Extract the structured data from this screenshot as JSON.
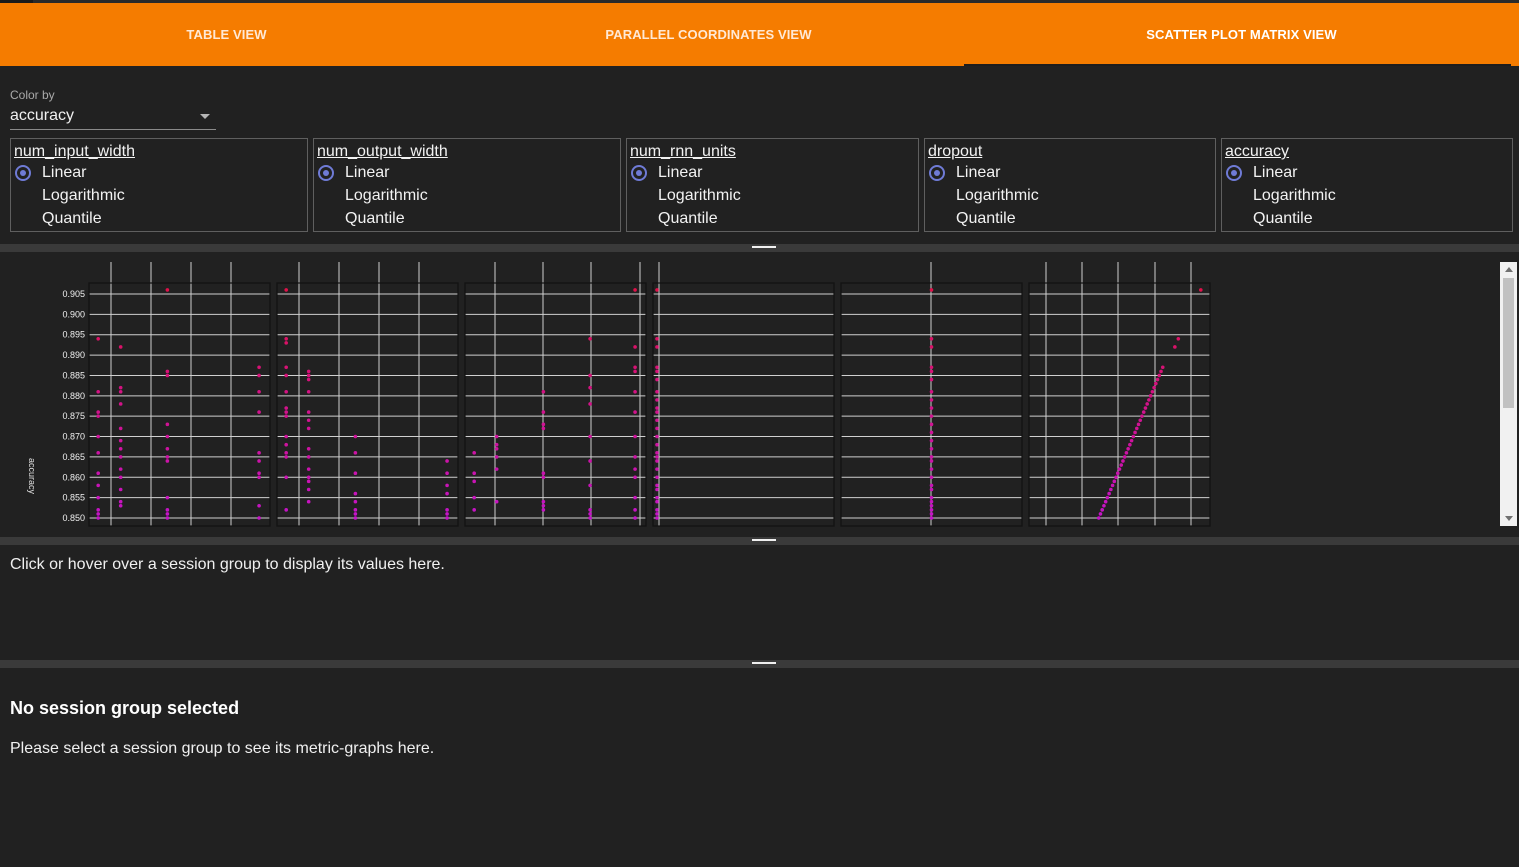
{
  "tabs": [
    {
      "label": "TABLE VIEW",
      "active": false
    },
    {
      "label": "PARALLEL COORDINATES VIEW",
      "active": false
    },
    {
      "label": "SCATTER PLOT MATRIX VIEW",
      "active": true
    }
  ],
  "color_by": {
    "label": "Color by",
    "value": "accuracy"
  },
  "scales": [
    {
      "name": "num_input_width",
      "selected": "Linear",
      "options": [
        "Linear",
        "Logarithmic",
        "Quantile"
      ]
    },
    {
      "name": "num_output_width",
      "selected": "Linear",
      "options": [
        "Linear",
        "Logarithmic",
        "Quantile"
      ]
    },
    {
      "name": "num_rnn_units",
      "selected": "Linear",
      "options": [
        "Linear",
        "Logarithmic",
        "Quantile"
      ]
    },
    {
      "name": "dropout",
      "selected": "Linear",
      "options": [
        "Linear",
        "Logarithmic",
        "Quantile"
      ]
    },
    {
      "name": "accuracy",
      "selected": "Linear",
      "options": [
        "Linear",
        "Logarithmic",
        "Quantile"
      ]
    }
  ],
  "colors": {
    "accent": "#f57c00",
    "radio": "#6f7bd6",
    "point_high": "#e0114a",
    "point_low": "#c414c8"
  },
  "chart_data": {
    "type": "scatter",
    "ylabel": "accuracy",
    "ylim": [
      0.849,
      0.907
    ],
    "yticks": [
      "0.905",
      "0.900",
      "0.895",
      "0.890",
      "0.885",
      "0.880",
      "0.875",
      "0.870",
      "0.865",
      "0.860",
      "0.855",
      "0.850"
    ],
    "panels": [
      {
        "x_column": "num_input_width",
        "points": [
          {
            "x": 0.03,
            "y": 0.894
          },
          {
            "x": 0.03,
            "y": 0.881
          },
          {
            "x": 0.03,
            "y": 0.876
          },
          {
            "x": 0.03,
            "y": 0.875
          },
          {
            "x": 0.03,
            "y": 0.87
          },
          {
            "x": 0.03,
            "y": 0.866
          },
          {
            "x": 0.03,
            "y": 0.861
          },
          {
            "x": 0.03,
            "y": 0.858
          },
          {
            "x": 0.03,
            "y": 0.855
          },
          {
            "x": 0.03,
            "y": 0.852
          },
          {
            "x": 0.03,
            "y": 0.851
          },
          {
            "x": 0.03,
            "y": 0.85
          },
          {
            "x": 0.16,
            "y": 0.892
          },
          {
            "x": 0.16,
            "y": 0.882
          },
          {
            "x": 0.16,
            "y": 0.881
          },
          {
            "x": 0.16,
            "y": 0.878
          },
          {
            "x": 0.16,
            "y": 0.872
          },
          {
            "x": 0.16,
            "y": 0.869
          },
          {
            "x": 0.16,
            "y": 0.867
          },
          {
            "x": 0.16,
            "y": 0.865
          },
          {
            "x": 0.16,
            "y": 0.862
          },
          {
            "x": 0.16,
            "y": 0.86
          },
          {
            "x": 0.16,
            "y": 0.857
          },
          {
            "x": 0.16,
            "y": 0.854
          },
          {
            "x": 0.16,
            "y": 0.853
          },
          {
            "x": 0.43,
            "y": 0.906
          },
          {
            "x": 0.43,
            "y": 0.886
          },
          {
            "x": 0.43,
            "y": 0.885
          },
          {
            "x": 0.43,
            "y": 0.873
          },
          {
            "x": 0.43,
            "y": 0.87
          },
          {
            "x": 0.43,
            "y": 0.867
          },
          {
            "x": 0.43,
            "y": 0.865
          },
          {
            "x": 0.43,
            "y": 0.864
          },
          {
            "x": 0.43,
            "y": 0.855
          },
          {
            "x": 0.43,
            "y": 0.852
          },
          {
            "x": 0.43,
            "y": 0.851
          },
          {
            "x": 0.43,
            "y": 0.85
          },
          {
            "x": 0.96,
            "y": 0.887
          },
          {
            "x": 0.96,
            "y": 0.885
          },
          {
            "x": 0.96,
            "y": 0.881
          },
          {
            "x": 0.96,
            "y": 0.876
          },
          {
            "x": 0.96,
            "y": 0.866
          },
          {
            "x": 0.96,
            "y": 0.864
          },
          {
            "x": 0.96,
            "y": 0.861
          },
          {
            "x": 0.96,
            "y": 0.86
          },
          {
            "x": 0.96,
            "y": 0.853
          },
          {
            "x": 0.96,
            "y": 0.85
          }
        ]
      },
      {
        "x_column": "num_output_width",
        "points": [
          {
            "x": 0.03,
            "y": 0.906
          },
          {
            "x": 0.03,
            "y": 0.894
          },
          {
            "x": 0.03,
            "y": 0.893
          },
          {
            "x": 0.03,
            "y": 0.887
          },
          {
            "x": 0.03,
            "y": 0.885
          },
          {
            "x": 0.03,
            "y": 0.881
          },
          {
            "x": 0.03,
            "y": 0.877
          },
          {
            "x": 0.03,
            "y": 0.876
          },
          {
            "x": 0.03,
            "y": 0.875
          },
          {
            "x": 0.03,
            "y": 0.87
          },
          {
            "x": 0.03,
            "y": 0.868
          },
          {
            "x": 0.03,
            "y": 0.866
          },
          {
            "x": 0.03,
            "y": 0.865
          },
          {
            "x": 0.03,
            "y": 0.86
          },
          {
            "x": 0.03,
            "y": 0.852
          },
          {
            "x": 0.16,
            "y": 0.886
          },
          {
            "x": 0.16,
            "y": 0.885
          },
          {
            "x": 0.16,
            "y": 0.884
          },
          {
            "x": 0.16,
            "y": 0.881
          },
          {
            "x": 0.16,
            "y": 0.876
          },
          {
            "x": 0.16,
            "y": 0.874
          },
          {
            "x": 0.16,
            "y": 0.872
          },
          {
            "x": 0.16,
            "y": 0.867
          },
          {
            "x": 0.16,
            "y": 0.865
          },
          {
            "x": 0.16,
            "y": 0.862
          },
          {
            "x": 0.16,
            "y": 0.86
          },
          {
            "x": 0.16,
            "y": 0.859
          },
          {
            "x": 0.16,
            "y": 0.857
          },
          {
            "x": 0.16,
            "y": 0.854
          },
          {
            "x": 0.43,
            "y": 0.87
          },
          {
            "x": 0.43,
            "y": 0.866
          },
          {
            "x": 0.43,
            "y": 0.861
          },
          {
            "x": 0.43,
            "y": 0.856
          },
          {
            "x": 0.43,
            "y": 0.854
          },
          {
            "x": 0.43,
            "y": 0.852
          },
          {
            "x": 0.43,
            "y": 0.851
          },
          {
            "x": 0.43,
            "y": 0.85
          },
          {
            "x": 0.96,
            "y": 0.864
          },
          {
            "x": 0.96,
            "y": 0.861
          },
          {
            "x": 0.96,
            "y": 0.858
          },
          {
            "x": 0.96,
            "y": 0.856
          },
          {
            "x": 0.96,
            "y": 0.852
          },
          {
            "x": 0.96,
            "y": 0.851
          },
          {
            "x": 0.96,
            "y": 0.85
          }
        ]
      },
      {
        "x_column": "num_rnn_units",
        "points": [
          {
            "x": 0.03,
            "y": 0.866
          },
          {
            "x": 0.03,
            "y": 0.861
          },
          {
            "x": 0.03,
            "y": 0.859
          },
          {
            "x": 0.03,
            "y": 0.855
          },
          {
            "x": 0.03,
            "y": 0.852
          },
          {
            "x": 0.16,
            "y": 0.87
          },
          {
            "x": 0.16,
            "y": 0.868
          },
          {
            "x": 0.16,
            "y": 0.867
          },
          {
            "x": 0.16,
            "y": 0.865
          },
          {
            "x": 0.16,
            "y": 0.862
          },
          {
            "x": 0.16,
            "y": 0.854
          },
          {
            "x": 0.43,
            "y": 0.881
          },
          {
            "x": 0.43,
            "y": 0.876
          },
          {
            "x": 0.43,
            "y": 0.873
          },
          {
            "x": 0.43,
            "y": 0.872
          },
          {
            "x": 0.43,
            "y": 0.861
          },
          {
            "x": 0.43,
            "y": 0.86
          },
          {
            "x": 0.43,
            "y": 0.854
          },
          {
            "x": 0.43,
            "y": 0.853
          },
          {
            "x": 0.43,
            "y": 0.852
          },
          {
            "x": 0.7,
            "y": 0.894
          },
          {
            "x": 0.7,
            "y": 0.885
          },
          {
            "x": 0.7,
            "y": 0.882
          },
          {
            "x": 0.7,
            "y": 0.878
          },
          {
            "x": 0.7,
            "y": 0.87
          },
          {
            "x": 0.7,
            "y": 0.864
          },
          {
            "x": 0.7,
            "y": 0.858
          },
          {
            "x": 0.7,
            "y": 0.852
          },
          {
            "x": 0.7,
            "y": 0.851
          },
          {
            "x": 0.7,
            "y": 0.85
          },
          {
            "x": 0.96,
            "y": 0.906
          },
          {
            "x": 0.96,
            "y": 0.892
          },
          {
            "x": 0.96,
            "y": 0.887
          },
          {
            "x": 0.96,
            "y": 0.886
          },
          {
            "x": 0.96,
            "y": 0.881
          },
          {
            "x": 0.96,
            "y": 0.876
          },
          {
            "x": 0.96,
            "y": 0.87
          },
          {
            "x": 0.96,
            "y": 0.865
          },
          {
            "x": 0.96,
            "y": 0.862
          },
          {
            "x": 0.96,
            "y": 0.86
          },
          {
            "x": 0.96,
            "y": 0.855
          },
          {
            "x": 0.96,
            "y": 0.852
          },
          {
            "x": 0.96,
            "y": 0.85
          }
        ]
      },
      {
        "x_column": "dropout",
        "points": [
          {
            "x": 0.0,
            "y": 0.906
          },
          {
            "x": 0.0,
            "y": 0.894
          },
          {
            "x": 0.0,
            "y": 0.892
          },
          {
            "x": 0.0,
            "y": 0.887
          },
          {
            "x": 0.0,
            "y": 0.886
          },
          {
            "x": 0.0,
            "y": 0.884
          },
          {
            "x": 0.0,
            "y": 0.881
          },
          {
            "x": 0.0,
            "y": 0.879
          },
          {
            "x": 0.0,
            "y": 0.877
          },
          {
            "x": 0.0,
            "y": 0.876
          },
          {
            "x": 0.0,
            "y": 0.874
          },
          {
            "x": 0.0,
            "y": 0.872
          },
          {
            "x": 0.0,
            "y": 0.87
          },
          {
            "x": 0.0,
            "y": 0.868
          },
          {
            "x": 0.0,
            "y": 0.866
          },
          {
            "x": 0.0,
            "y": 0.865
          },
          {
            "x": 0.0,
            "y": 0.864
          },
          {
            "x": 0.0,
            "y": 0.862
          },
          {
            "x": 0.0,
            "y": 0.86
          },
          {
            "x": 0.0,
            "y": 0.858
          },
          {
            "x": 0.0,
            "y": 0.857
          },
          {
            "x": 0.0,
            "y": 0.855
          },
          {
            "x": 0.0,
            "y": 0.854
          },
          {
            "x": 0.0,
            "y": 0.852
          },
          {
            "x": 0.0,
            "y": 0.851
          },
          {
            "x": 0.0,
            "y": 0.85
          }
        ]
      },
      {
        "x_column": "dropout",
        "points": [
          {
            "x": 0.5,
            "y": 0.906
          },
          {
            "x": 0.5,
            "y": 0.894
          },
          {
            "x": 0.5,
            "y": 0.892
          },
          {
            "x": 0.5,
            "y": 0.887
          },
          {
            "x": 0.5,
            "y": 0.886
          },
          {
            "x": 0.5,
            "y": 0.884
          },
          {
            "x": 0.5,
            "y": 0.881
          },
          {
            "x": 0.5,
            "y": 0.879
          },
          {
            "x": 0.5,
            "y": 0.877
          },
          {
            "x": 0.5,
            "y": 0.875
          },
          {
            "x": 0.5,
            "y": 0.873
          },
          {
            "x": 0.5,
            "y": 0.871
          },
          {
            "x": 0.5,
            "y": 0.869
          },
          {
            "x": 0.5,
            "y": 0.867
          },
          {
            "x": 0.5,
            "y": 0.865
          },
          {
            "x": 0.5,
            "y": 0.864
          },
          {
            "x": 0.5,
            "y": 0.862
          },
          {
            "x": 0.5,
            "y": 0.86
          },
          {
            "x": 0.5,
            "y": 0.858
          },
          {
            "x": 0.5,
            "y": 0.857
          },
          {
            "x": 0.5,
            "y": 0.855
          },
          {
            "x": 0.5,
            "y": 0.854
          },
          {
            "x": 0.5,
            "y": 0.853
          },
          {
            "x": 0.5,
            "y": 0.852
          },
          {
            "x": 0.5,
            "y": 0.851
          },
          {
            "x": 0.5,
            "y": 0.85
          }
        ]
      },
      {
        "x_column": "accuracy",
        "points": [
          {
            "x": 0.38,
            "y": 0.85
          },
          {
            "x": 0.39,
            "y": 0.851
          },
          {
            "x": 0.4,
            "y": 0.852
          },
          {
            "x": 0.41,
            "y": 0.853
          },
          {
            "x": 0.42,
            "y": 0.854
          },
          {
            "x": 0.43,
            "y": 0.855
          },
          {
            "x": 0.44,
            "y": 0.856
          },
          {
            "x": 0.45,
            "y": 0.857
          },
          {
            "x": 0.46,
            "y": 0.858
          },
          {
            "x": 0.47,
            "y": 0.859
          },
          {
            "x": 0.48,
            "y": 0.86
          },
          {
            "x": 0.49,
            "y": 0.861
          },
          {
            "x": 0.5,
            "y": 0.862
          },
          {
            "x": 0.51,
            "y": 0.863
          },
          {
            "x": 0.52,
            "y": 0.864
          },
          {
            "x": 0.53,
            "y": 0.865
          },
          {
            "x": 0.54,
            "y": 0.866
          },
          {
            "x": 0.55,
            "y": 0.867
          },
          {
            "x": 0.56,
            "y": 0.868
          },
          {
            "x": 0.57,
            "y": 0.869
          },
          {
            "x": 0.58,
            "y": 0.87
          },
          {
            "x": 0.59,
            "y": 0.871
          },
          {
            "x": 0.6,
            "y": 0.872
          },
          {
            "x": 0.61,
            "y": 0.873
          },
          {
            "x": 0.62,
            "y": 0.874
          },
          {
            "x": 0.63,
            "y": 0.875
          },
          {
            "x": 0.64,
            "y": 0.876
          },
          {
            "x": 0.65,
            "y": 0.877
          },
          {
            "x": 0.66,
            "y": 0.878
          },
          {
            "x": 0.67,
            "y": 0.879
          },
          {
            "x": 0.68,
            "y": 0.88
          },
          {
            "x": 0.69,
            "y": 0.881
          },
          {
            "x": 0.7,
            "y": 0.882
          },
          {
            "x": 0.71,
            "y": 0.883
          },
          {
            "x": 0.72,
            "y": 0.884
          },
          {
            "x": 0.73,
            "y": 0.885
          },
          {
            "x": 0.74,
            "y": 0.886
          },
          {
            "x": 0.75,
            "y": 0.887
          },
          {
            "x": 0.82,
            "y": 0.892
          },
          {
            "x": 0.84,
            "y": 0.894
          },
          {
            "x": 0.97,
            "y": 0.906
          }
        ]
      }
    ]
  },
  "hover_info": "Click or hover over a session group to display its values here.",
  "no_selection": {
    "title": "No session group selected",
    "text": "Please select a session group to see its metric-graphs here."
  }
}
